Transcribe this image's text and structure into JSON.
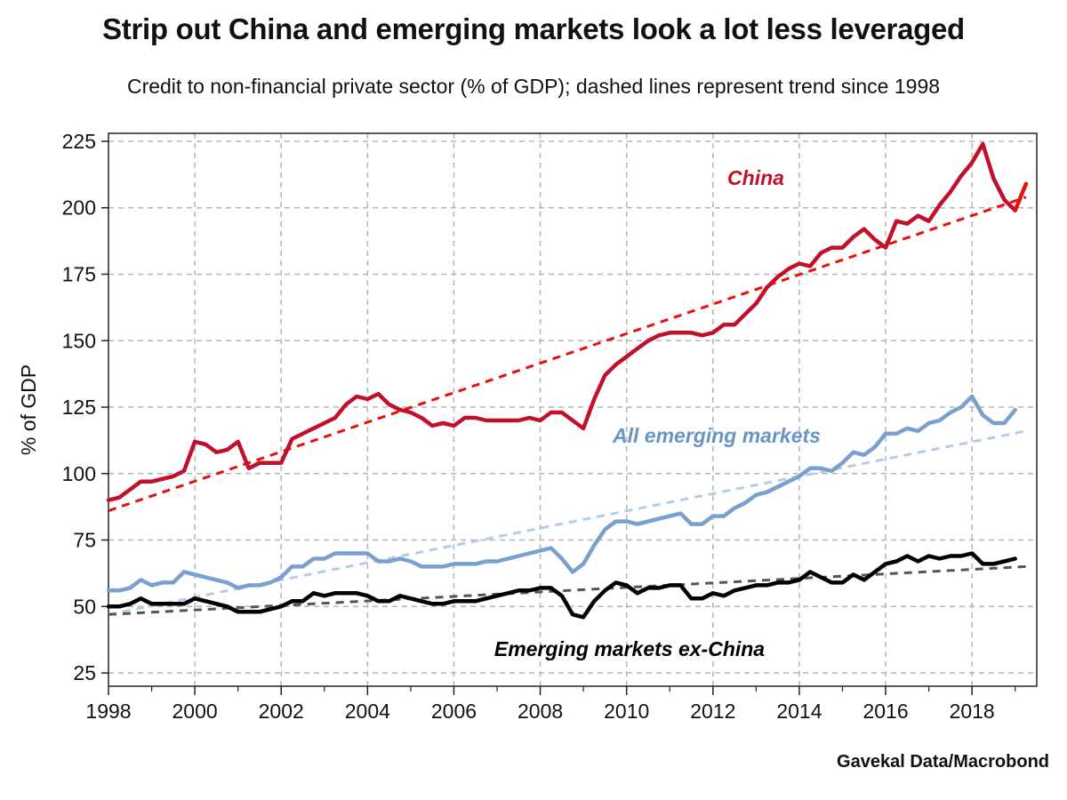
{
  "title": "Strip out China and emerging markets look a lot less leveraged",
  "subtitle": "Credit to non-financial private sector (% of GDP); dashed lines represent trend since 1998",
  "source": "Gavekal Data/Macrobond",
  "chart_data": {
    "type": "line",
    "ylabel": "% of GDP",
    "xlim": [
      1998,
      2019.5
    ],
    "ylim": [
      20,
      228
    ],
    "x_ticks": [
      1998,
      2000,
      2002,
      2004,
      2006,
      2008,
      2010,
      2012,
      2014,
      2016,
      2018
    ],
    "y_ticks": [
      25,
      50,
      75,
      100,
      125,
      150,
      175,
      200,
      225
    ],
    "grid": true,
    "series": [
      {
        "name": "China",
        "color": "#c0102a",
        "label_color": "#c0102a",
        "x": [
          1998.0,
          1998.25,
          1998.5,
          1998.75,
          1999.0,
          1999.25,
          1999.5,
          1999.75,
          2000.0,
          2000.25,
          2000.5,
          2000.75,
          2001.0,
          2001.25,
          2001.5,
          2001.75,
          2002.0,
          2002.25,
          2002.5,
          2002.75,
          2003.0,
          2003.25,
          2003.5,
          2003.75,
          2004.0,
          2004.25,
          2004.5,
          2004.75,
          2005.0,
          2005.25,
          2005.5,
          2005.75,
          2006.0,
          2006.25,
          2006.5,
          2006.75,
          2007.0,
          2007.25,
          2007.5,
          2007.75,
          2008.0,
          2008.25,
          2008.5,
          2008.75,
          2009.0,
          2009.25,
          2009.5,
          2009.75,
          2010.0,
          2010.25,
          2010.5,
          2010.75,
          2011.0,
          2011.25,
          2011.5,
          2011.75,
          2012.0,
          2012.25,
          2012.5,
          2012.75,
          2013.0,
          2013.25,
          2013.5,
          2013.75,
          2014.0,
          2014.25,
          2014.5,
          2014.75,
          2015.0,
          2015.25,
          2015.5,
          2015.75,
          2016.0,
          2016.25,
          2016.5,
          2016.75,
          2017.0,
          2017.25,
          2017.5,
          2017.75,
          2018.0,
          2018.25,
          2018.5,
          2018.75,
          2019.0
        ],
        "values": [
          90,
          91,
          94,
          97,
          97,
          98,
          99,
          101,
          112,
          111,
          108,
          109,
          112,
          102,
          104,
          104,
          104,
          113,
          115,
          117,
          119,
          121,
          126,
          129,
          128,
          130,
          126,
          124,
          123,
          121,
          118,
          119,
          118,
          121,
          121,
          120,
          120,
          120,
          120,
          121,
          120,
          123,
          123,
          120,
          117,
          128,
          137,
          141,
          144,
          147,
          150,
          152,
          153,
          153,
          153,
          152,
          153,
          156,
          156,
          160,
          164,
          170,
          174,
          177,
          179,
          178,
          183,
          185,
          185,
          189,
          192,
          188,
          185,
          195,
          194,
          197,
          195,
          201,
          206,
          212,
          217,
          224,
          211,
          203,
          199
        ],
        "tail_x": [
          2019.0,
          2019.25
        ],
        "tail_values": [
          199,
          209
        ],
        "tail_color": "#e8100c",
        "trend": {
          "x": [
            1998.0,
            2019.25
          ],
          "values": [
            86,
            204
          ],
          "color": "#e8100c"
        }
      },
      {
        "name": "All emerging markets",
        "color": "#7aa0d0",
        "label_color": "#6a94c8",
        "x": [
          1998.0,
          1998.25,
          1998.5,
          1998.75,
          1999.0,
          1999.25,
          1999.5,
          1999.75,
          2000.0,
          2000.25,
          2000.5,
          2000.75,
          2001.0,
          2001.25,
          2001.5,
          2001.75,
          2002.0,
          2002.25,
          2002.5,
          2002.75,
          2003.0,
          2003.25,
          2003.5,
          2003.75,
          2004.0,
          2004.25,
          2004.5,
          2004.75,
          2005.0,
          2005.25,
          2005.5,
          2005.75,
          2006.0,
          2006.25,
          2006.5,
          2006.75,
          2007.0,
          2007.25,
          2007.5,
          2007.75,
          2008.0,
          2008.25,
          2008.5,
          2008.75,
          2009.0,
          2009.25,
          2009.5,
          2009.75,
          2010.0,
          2010.25,
          2010.5,
          2010.75,
          2011.0,
          2011.25,
          2011.5,
          2011.75,
          2012.0,
          2012.25,
          2012.5,
          2012.75,
          2013.0,
          2013.25,
          2013.5,
          2013.75,
          2014.0,
          2014.25,
          2014.5,
          2014.75,
          2015.0,
          2015.25,
          2015.5,
          2015.75,
          2016.0,
          2016.25,
          2016.5,
          2016.75,
          2017.0,
          2017.25,
          2017.5,
          2017.75,
          2018.0,
          2018.25,
          2018.5,
          2018.75,
          2019.0
        ],
        "values": [
          56,
          56,
          57,
          60,
          58,
          59,
          59,
          63,
          62,
          61,
          60,
          59,
          57,
          58,
          58,
          59,
          61,
          65,
          65,
          68,
          68,
          70,
          70,
          70,
          70,
          67,
          67,
          68,
          67,
          65,
          65,
          65,
          66,
          66,
          66,
          67,
          67,
          68,
          69,
          70,
          71,
          72,
          68,
          63,
          66,
          73,
          79,
          82,
          82,
          81,
          82,
          83,
          84,
          85,
          81,
          81,
          84,
          84,
          87,
          89,
          92,
          93,
          95,
          97,
          99,
          102,
          102,
          101,
          104,
          108,
          107,
          110,
          115,
          115,
          117,
          116,
          119,
          120,
          123,
          125,
          129,
          122,
          119,
          119,
          124
        ],
        "trend": {
          "x": [
            1998.0,
            2019.25
          ],
          "values": [
            47,
            116
          ],
          "color": "#b4cce8"
        }
      },
      {
        "name": "Emerging markets ex-China",
        "color": "#000000",
        "label_color": "#000000",
        "x": [
          1998.0,
          1998.25,
          1998.5,
          1998.75,
          1999.0,
          1999.25,
          1999.5,
          1999.75,
          2000.0,
          2000.25,
          2000.5,
          2000.75,
          2001.0,
          2001.25,
          2001.5,
          2001.75,
          2002.0,
          2002.25,
          2002.5,
          2002.75,
          2003.0,
          2003.25,
          2003.5,
          2003.75,
          2004.0,
          2004.25,
          2004.5,
          2004.75,
          2005.0,
          2005.25,
          2005.5,
          2005.75,
          2006.0,
          2006.25,
          2006.5,
          2006.75,
          2007.0,
          2007.25,
          2007.5,
          2007.75,
          2008.0,
          2008.25,
          2008.5,
          2008.75,
          2009.0,
          2009.25,
          2009.5,
          2009.75,
          2010.0,
          2010.25,
          2010.5,
          2010.75,
          2011.0,
          2011.25,
          2011.5,
          2011.75,
          2012.0,
          2012.25,
          2012.5,
          2012.75,
          2013.0,
          2013.25,
          2013.5,
          2013.75,
          2014.0,
          2014.25,
          2014.5,
          2014.75,
          2015.0,
          2015.25,
          2015.5,
          2015.75,
          2016.0,
          2016.25,
          2016.5,
          2016.75,
          2017.0,
          2017.25,
          2017.5,
          2017.75,
          2018.0,
          2018.25,
          2018.5,
          2018.75,
          2019.0
        ],
        "values": [
          50,
          50,
          51,
          53,
          51,
          51,
          51,
          51,
          53,
          52,
          51,
          50,
          48,
          48,
          48,
          49,
          50,
          52,
          52,
          55,
          54,
          55,
          55,
          55,
          54,
          52,
          52,
          54,
          53,
          52,
          51,
          51,
          52,
          52,
          52,
          53,
          54,
          55,
          56,
          56,
          57,
          57,
          54,
          47,
          46,
          52,
          56,
          59,
          58,
          55,
          57,
          57,
          58,
          58,
          53,
          53,
          55,
          54,
          56,
          57,
          58,
          58,
          59,
          59,
          60,
          63,
          61,
          59,
          59,
          62,
          60,
          63,
          66,
          67,
          69,
          67,
          69,
          68,
          69,
          69,
          70,
          66,
          66,
          67,
          68
        ],
        "trend": {
          "x": [
            1998.0,
            2019.25
          ],
          "values": [
            47,
            65
          ],
          "color": "#555555"
        }
      }
    ]
  }
}
